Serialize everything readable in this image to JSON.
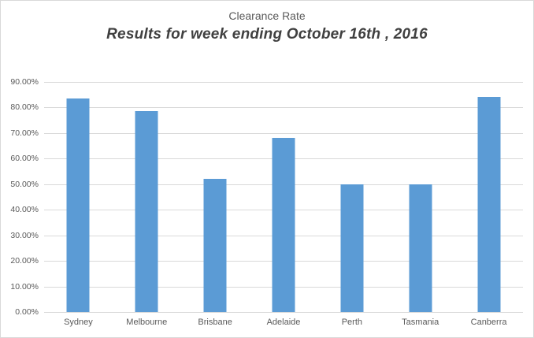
{
  "chart_data": {
    "type": "bar",
    "title": "Clearance Rate",
    "subtitle": "Results for week ending October 16th , 2016",
    "categories": [
      "Sydney",
      "Melbourne",
      "Brisbane",
      "Adelaide",
      "Perth",
      "Tasmania",
      "Canberra"
    ],
    "values": [
      83.4,
      78.5,
      52.2,
      68.0,
      50.0,
      50.0,
      84.0
    ],
    "xlabel": "",
    "ylabel": "",
    "ylim": [
      0,
      90
    ],
    "y_tick_step": 10,
    "y_tick_labels": [
      "0.00%",
      "10.00%",
      "20.00%",
      "30.00%",
      "40.00%",
      "50.00%",
      "60.00%",
      "70.00%",
      "80.00%",
      "90.00%"
    ],
    "grid": true,
    "legend": "none",
    "colors": {
      "bar": "#5B9BD5",
      "gridline": "#D9D9D9",
      "frame_border": "#D9D9D9",
      "title_text": "#595959",
      "subtitle_text": "#404040",
      "axis_text": "#595959",
      "background": "#FFFFFF"
    }
  }
}
